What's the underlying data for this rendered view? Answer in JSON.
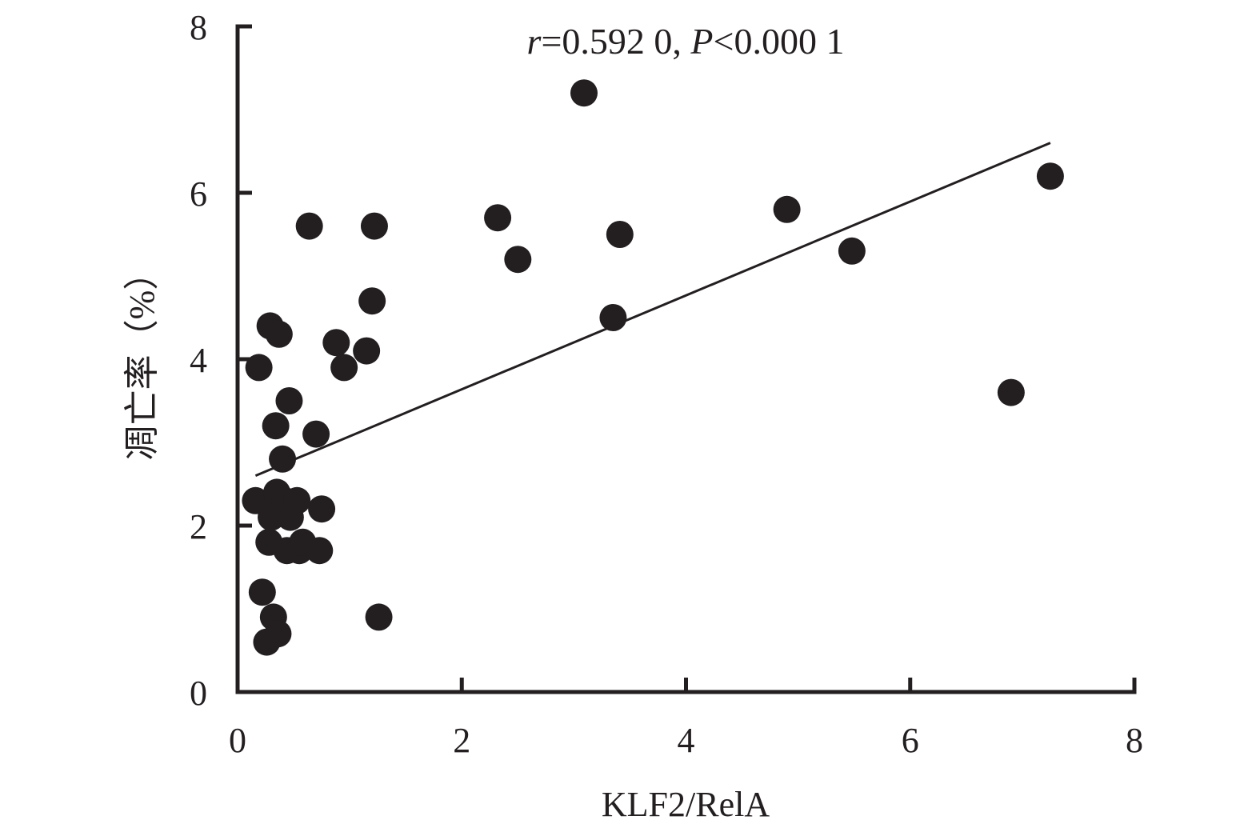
{
  "chart_data": {
    "type": "scatter",
    "title": "",
    "xlabel": "KLF2/RelA",
    "ylabel": "凋亡率（%）",
    "annotation": {
      "r_symbol": "r",
      "r_text": "=0.592 0, ",
      "p_symbol": "P",
      "p_text": "<0.000 1"
    },
    "xlim": [
      0,
      8
    ],
    "ylim": [
      0,
      8
    ],
    "x_ticks": [
      "0",
      "2",
      "4",
      "6",
      "8"
    ],
    "y_ticks": [
      "0",
      "2",
      "4",
      "6",
      "8"
    ],
    "grid": false,
    "legend": "none",
    "marker_color": "#231f20",
    "points": [
      {
        "x": 0.16,
        "y": 2.3
      },
      {
        "x": 0.19,
        "y": 3.9
      },
      {
        "x": 0.22,
        "y": 1.2
      },
      {
        "x": 0.26,
        "y": 0.6
      },
      {
        "x": 0.28,
        "y": 1.8
      },
      {
        "x": 0.29,
        "y": 4.4
      },
      {
        "x": 0.3,
        "y": 2.1
      },
      {
        "x": 0.32,
        "y": 2.2
      },
      {
        "x": 0.32,
        "y": 0.9
      },
      {
        "x": 0.34,
        "y": 3.2
      },
      {
        "x": 0.35,
        "y": 2.4
      },
      {
        "x": 0.36,
        "y": 0.7
      },
      {
        "x": 0.37,
        "y": 4.3
      },
      {
        "x": 0.4,
        "y": 2.8
      },
      {
        "x": 0.42,
        "y": 2.3
      },
      {
        "x": 0.44,
        "y": 1.7
      },
      {
        "x": 0.46,
        "y": 3.5
      },
      {
        "x": 0.47,
        "y": 2.1
      },
      {
        "x": 0.53,
        "y": 2.3
      },
      {
        "x": 0.55,
        "y": 1.7
      },
      {
        "x": 0.58,
        "y": 1.8
      },
      {
        "x": 0.64,
        "y": 5.6
      },
      {
        "x": 0.7,
        "y": 3.1
      },
      {
        "x": 0.73,
        "y": 1.7
      },
      {
        "x": 0.75,
        "y": 2.2
      },
      {
        "x": 0.88,
        "y": 4.2
      },
      {
        "x": 0.95,
        "y": 3.9
      },
      {
        "x": 1.15,
        "y": 4.1
      },
      {
        "x": 1.2,
        "y": 4.7
      },
      {
        "x": 1.22,
        "y": 5.6
      },
      {
        "x": 1.26,
        "y": 0.9
      },
      {
        "x": 2.32,
        "y": 5.7
      },
      {
        "x": 2.5,
        "y": 5.2
      },
      {
        "x": 3.09,
        "y": 7.2
      },
      {
        "x": 3.35,
        "y": 4.5
      },
      {
        "x": 3.41,
        "y": 5.5
      },
      {
        "x": 4.9,
        "y": 5.8
      },
      {
        "x": 5.48,
        "y": 5.3
      },
      {
        "x": 6.9,
        "y": 3.6
      },
      {
        "x": 7.25,
        "y": 6.2
      }
    ],
    "trendline": {
      "x": [
        0.16,
        7.25
      ],
      "y": [
        2.6,
        6.6
      ]
    }
  }
}
